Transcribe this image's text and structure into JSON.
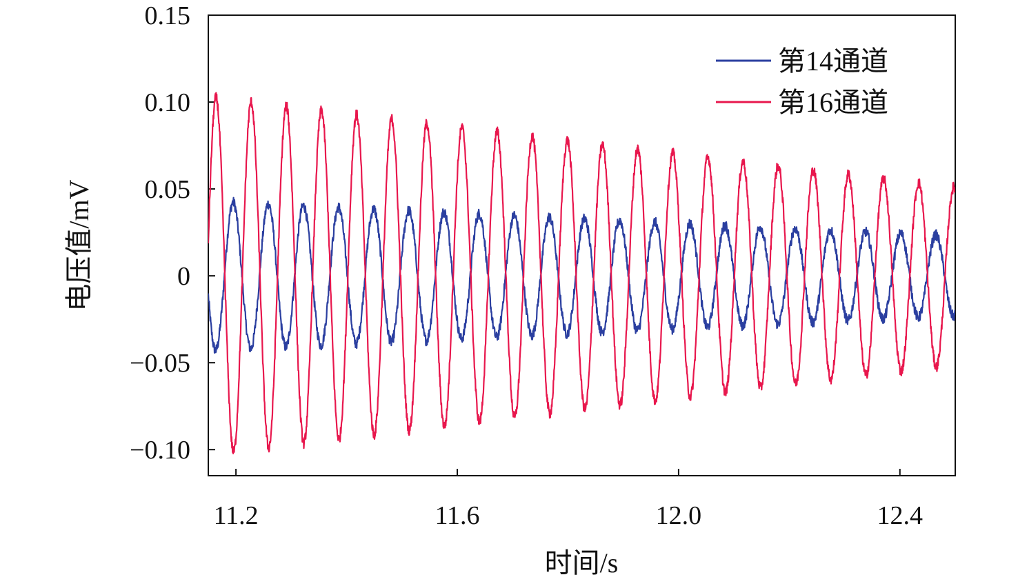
{
  "chart_data": {
    "type": "line",
    "title": "",
    "xlabel": "时间/s",
    "ylabel": "电压值/mV",
    "xlim": [
      11.15,
      12.5
    ],
    "ylim": [
      -0.115,
      0.15
    ],
    "xticks": [
      11.2,
      11.6,
      12.0,
      12.4
    ],
    "xtick_labels": [
      "11.2",
      "11.6",
      "12.0",
      "12.4"
    ],
    "yticks": [
      0.15,
      0.1,
      0.05,
      0,
      -0.05,
      -0.1
    ],
    "ytick_labels": [
      "0.15",
      "0.10",
      "0.05",
      "0",
      "−0.05",
      "−0.10"
    ],
    "grid": false,
    "legend_position": "top-right",
    "series": [
      {
        "name": "第14通道",
        "color": "#2b3fa0",
        "amplitude_start": 0.043,
        "amplitude_end": 0.023,
        "period_s": 0.0635,
        "first_peak_x": 11.195,
        "note_zero": 0
      },
      {
        "name": "第16通道",
        "color": "#e8174d",
        "amplitude_start": 0.103,
        "amplitude_end": 0.051,
        "period_s": 0.0635,
        "first_peak_x": 11.164
      }
    ]
  }
}
